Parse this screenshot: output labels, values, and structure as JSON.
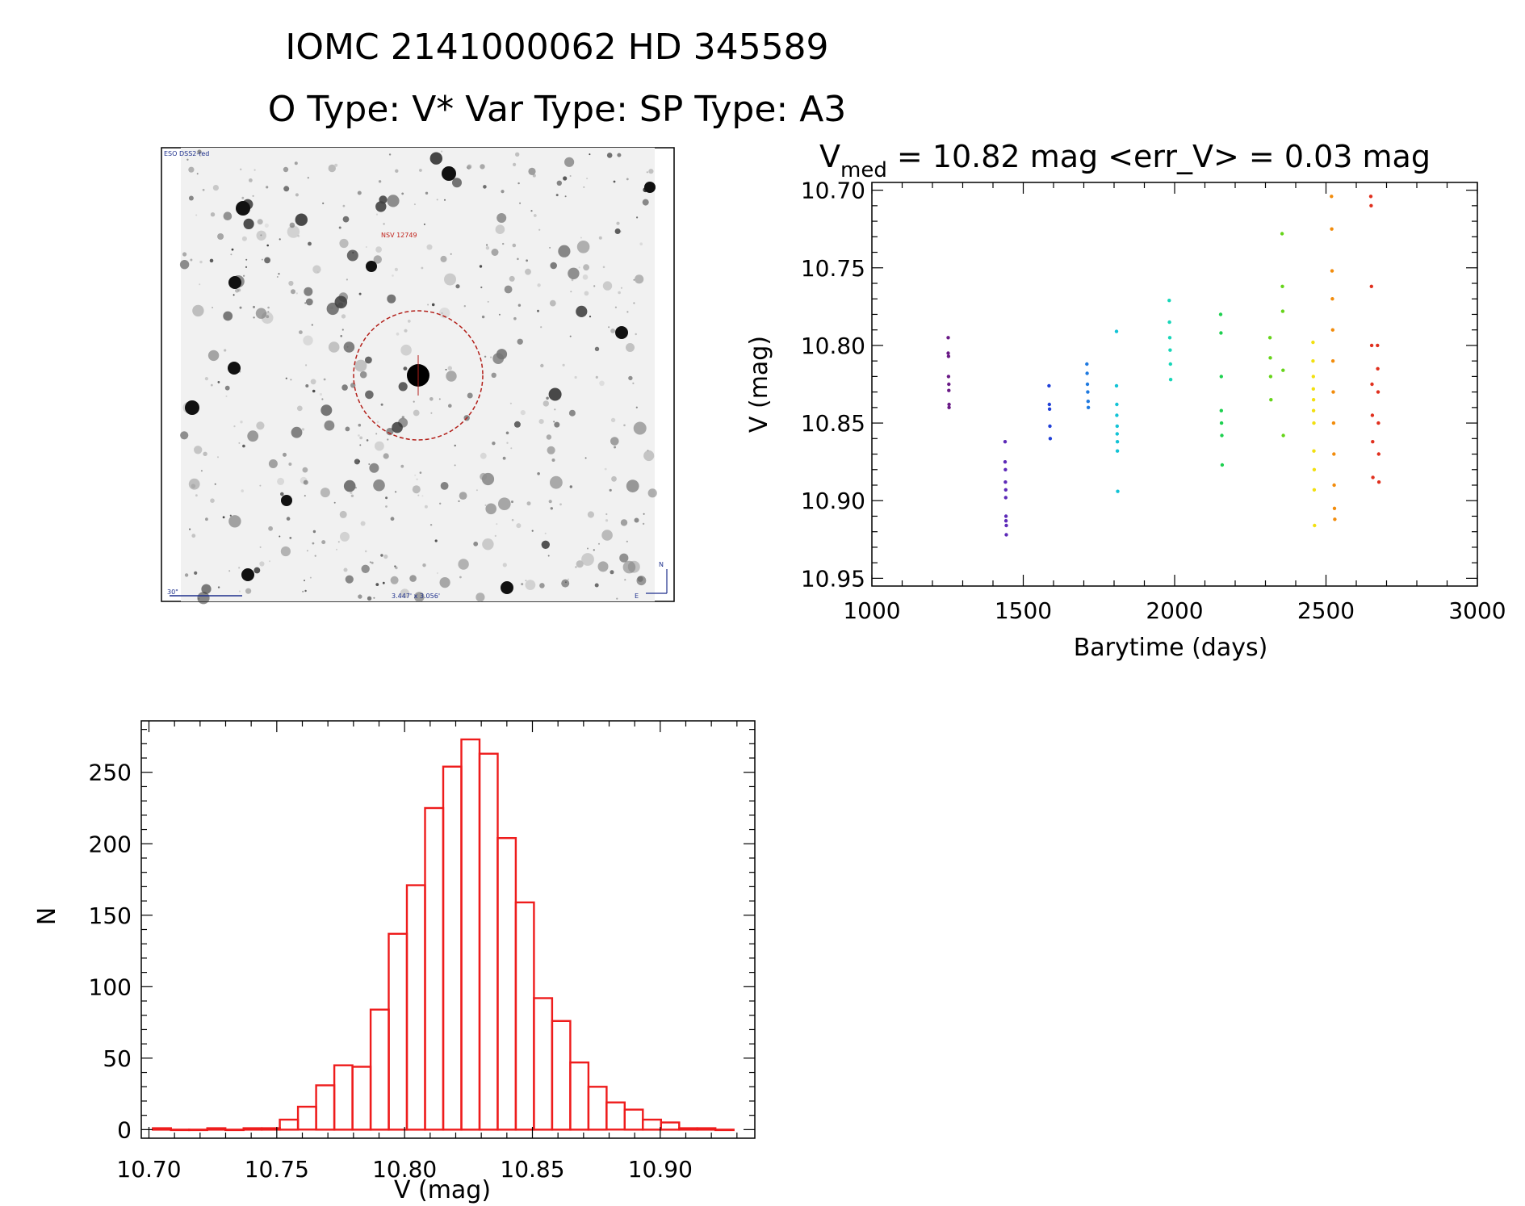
{
  "header": {
    "title": "IOMC 2141000062    HD 345589",
    "subtitle": "O Type: V*  Var Type:    SP Type: A3"
  },
  "image_panel": {
    "survey_label": "ESO DSS2-red",
    "target_label": "NSV 12749",
    "scale_label": "30\"",
    "fov_label": "3.447' x 3.056'",
    "north_label": "N",
    "east_label": "E"
  },
  "chart_data": [
    {
      "type": "scatter",
      "title_prefix": "V",
      "title_sub": "med",
      "title_rest": " = 10.82 mag <err_V> = 0.03 mag",
      "xlabel": "Barytime (days)",
      "ylabel": "V (mag)",
      "xlim": [
        1000,
        3000
      ],
      "ylim": [
        10.955,
        10.695
      ],
      "xticks": [
        1000,
        1500,
        2000,
        2500,
        3000
      ],
      "yticks": [
        10.7,
        10.75,
        10.8,
        10.85,
        10.9,
        10.95
      ],
      "ytick_labels": [
        "10.70",
        "10.75",
        "10.80",
        "10.85",
        "10.90",
        "10.95"
      ],
      "grid": false,
      "series": [
        {
          "color": "#6a1a86",
          "x": [
            1252,
            1252,
            1253,
            1253,
            1254,
            1254,
            1255,
            1255
          ],
          "y": [
            10.795,
            10.805,
            10.807,
            10.82,
            10.825,
            10.829,
            10.838,
            10.84
          ]
        },
        {
          "color": "#5d2ab8",
          "x": [
            1440,
            1440,
            1441,
            1441,
            1442,
            1442,
            1443,
            1443,
            1444,
            1444
          ],
          "y": [
            10.862,
            10.875,
            10.88,
            10.888,
            10.893,
            10.898,
            10.91,
            10.913,
            10.916,
            10.922
          ]
        },
        {
          "color": "#2040d8",
          "x": [
            1585,
            1586,
            1587,
            1588,
            1589
          ],
          "y": [
            10.826,
            10.838,
            10.841,
            10.852,
            10.86
          ]
        },
        {
          "color": "#1f7ae0",
          "x": [
            1710,
            1711,
            1712,
            1713,
            1714,
            1715
          ],
          "y": [
            10.812,
            10.818,
            10.825,
            10.83,
            10.836,
            10.84
          ]
        },
        {
          "color": "#12c3d6",
          "x": [
            1808,
            1808,
            1809,
            1809,
            1810,
            1810,
            1811,
            1811,
            1812
          ],
          "y": [
            10.791,
            10.826,
            10.838,
            10.845,
            10.852,
            10.857,
            10.862,
            10.868,
            10.894
          ]
        },
        {
          "color": "#16d6b8",
          "x": [
            1982,
            1983,
            1984,
            1985,
            1986,
            1987
          ],
          "y": [
            10.771,
            10.785,
            10.795,
            10.803,
            10.812,
            10.822
          ]
        },
        {
          "color": "#1ed050",
          "x": [
            2152,
            2153,
            2154,
            2154,
            2155,
            2156,
            2157
          ],
          "y": [
            10.78,
            10.792,
            10.82,
            10.842,
            10.85,
            10.858,
            10.877
          ]
        },
        {
          "color": "#66d41a",
          "x": [
            2315,
            2316,
            2317,
            2318,
            2355,
            2356,
            2357,
            2358,
            2359
          ],
          "y": [
            10.795,
            10.808,
            10.82,
            10.835,
            10.728,
            10.762,
            10.778,
            10.816,
            10.858
          ]
        },
        {
          "color": "#f2e010",
          "x": [
            2457,
            2457,
            2458,
            2458,
            2459,
            2459,
            2460,
            2460,
            2461,
            2461,
            2462
          ],
          "y": [
            10.798,
            10.81,
            10.82,
            10.828,
            10.835,
            10.842,
            10.85,
            10.868,
            10.88,
            10.893,
            10.916
          ]
        },
        {
          "color": "#f28c0c",
          "x": [
            2518,
            2519,
            2520,
            2521,
            2522,
            2523,
            2524,
            2525,
            2526,
            2527,
            2528,
            2529
          ],
          "y": [
            10.704,
            10.725,
            10.752,
            10.77,
            10.79,
            10.81,
            10.83,
            10.85,
            10.87,
            10.89,
            10.905,
            10.912
          ]
        },
        {
          "color": "#e0301e",
          "x": [
            2648,
            2649,
            2650,
            2651,
            2652,
            2653,
            2654,
            2655,
            2670,
            2671,
            2672,
            2673,
            2674,
            2675
          ],
          "y": [
            10.704,
            10.71,
            10.762,
            10.8,
            10.825,
            10.845,
            10.862,
            10.885,
            10.8,
            10.815,
            10.83,
            10.85,
            10.87,
            10.888
          ]
        }
      ]
    },
    {
      "type": "bar",
      "xlabel": "V (mag)",
      "ylabel": "N",
      "xlim": [
        10.697,
        10.937
      ],
      "ylim": [
        -6,
        286
      ],
      "xticks": [
        10.7,
        10.75,
        10.8,
        10.85,
        10.9
      ],
      "xtick_labels": [
        "10.70",
        "10.75",
        "10.80",
        "10.85",
        "10.90"
      ],
      "yticks": [
        0,
        50,
        100,
        150,
        200,
        250
      ],
      "bin_start": 10.7015,
      "bin_width": 0.0071,
      "counts": [
        1,
        0,
        0,
        1,
        0,
        1,
        1,
        7,
        16,
        31,
        45,
        44,
        84,
        137,
        171,
        225,
        254,
        273,
        263,
        204,
        159,
        92,
        76,
        47,
        30,
        19,
        14,
        7,
        5,
        1,
        1,
        0
      ],
      "bar_color": "#ee1c1c"
    }
  ]
}
